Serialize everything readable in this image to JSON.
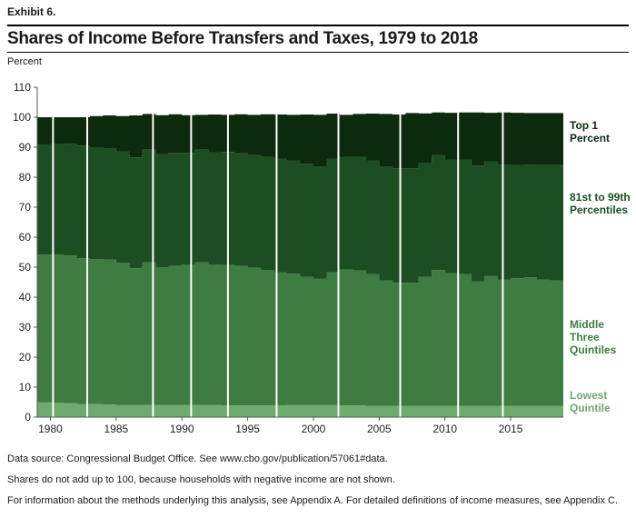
{
  "exhibit": "Exhibit 6.",
  "title": "Shares of Income Before Transfers and Taxes, 1979 to 2018",
  "unit_label": "Percent",
  "notes": {
    "source": "Data source: Congressional Budget Office. See www.cbo.gov/publication/57061#data.",
    "note1": "Shares do not add up to 100, because households with negative income are not shown.",
    "note2": "For information about the methods underlying this analysis, see Appendix A. For detailed definitions of income measures, see Appendix C."
  },
  "colors": {
    "lowest": "#6faa6f",
    "middle": "#3e7c42",
    "upper": "#1d4e22",
    "top1": "#0b2a0e",
    "separator": "#ffffff"
  },
  "chart_data": {
    "type": "area",
    "title": "Shares of Income Before Transfers and Taxes, 1979 to 2018",
    "ylabel": "Percent",
    "ylim": [
      0,
      110
    ],
    "yticks": [
      0,
      10,
      20,
      30,
      40,
      50,
      60,
      70,
      80,
      90,
      100,
      110
    ],
    "xticks": [
      1980,
      1985,
      1990,
      1995,
      2000,
      2005,
      2010,
      2015
    ],
    "recession_separators": [
      1980.2,
      1982.8,
      1987.8,
      1990.7,
      1993.5,
      1997.2,
      2001.9,
      2006.6,
      2011.0,
      2014.4
    ],
    "years": [
      1979,
      1980,
      1981,
      1982,
      1983,
      1984,
      1985,
      1986,
      1987,
      1988,
      1989,
      1990,
      1991,
      1992,
      1993,
      1994,
      1995,
      1996,
      1997,
      1998,
      1999,
      2000,
      2001,
      2002,
      2003,
      2004,
      2005,
      2006,
      2007,
      2008,
      2009,
      2010,
      2011,
      2012,
      2013,
      2014,
      2015,
      2016,
      2017,
      2018
    ],
    "series": [
      {
        "name": "Lowest Quintile",
        "values": [
          5.0,
          4.8,
          4.6,
          4.4,
          4.3,
          4.2,
          4.1,
          4.0,
          4.0,
          4.0,
          4.0,
          4.0,
          4.0,
          4.0,
          3.9,
          3.9,
          3.9,
          3.9,
          3.9,
          4.0,
          4.0,
          4.0,
          4.0,
          3.9,
          3.9,
          3.8,
          3.8,
          3.8,
          3.8,
          3.8,
          3.8,
          3.8,
          3.8,
          3.8,
          3.8,
          3.8,
          3.8,
          3.8,
          3.8,
          3.8
        ]
      },
      {
        "name": "Middle Three Quintiles",
        "values": [
          49.2,
          49.4,
          49.3,
          48.6,
          48.4,
          48.3,
          47.4,
          45.6,
          47.6,
          46.0,
          46.4,
          46.9,
          47.6,
          46.8,
          46.8,
          46.5,
          45.9,
          45.2,
          44.3,
          43.8,
          42.8,
          42.1,
          44.3,
          45.3,
          45.0,
          43.9,
          41.7,
          41.0,
          41.0,
          43.0,
          45.2,
          44.2,
          43.9,
          41.5,
          43.2,
          42.0,
          42.5,
          42.8,
          42.1,
          41.7
        ]
      },
      {
        "name": "81st to 99th Percentiles",
        "values": [
          36.6,
          37.0,
          37.2,
          37.5,
          37.3,
          37.0,
          37.0,
          37.0,
          37.6,
          37.6,
          37.7,
          37.2,
          37.8,
          37.4,
          37.7,
          37.6,
          37.6,
          37.7,
          37.9,
          37.8,
          37.7,
          37.3,
          37.9,
          37.5,
          37.8,
          37.9,
          37.9,
          38.2,
          38.2,
          37.8,
          38.3,
          37.9,
          38.2,
          38.6,
          38.3,
          38.2,
          37.8,
          37.6,
          38.1,
          38.5
        ]
      },
      {
        "name": "Top 1 Percent",
        "values": [
          9.2,
          8.8,
          8.9,
          9.5,
          10.4,
          11.1,
          11.9,
          14.0,
          11.9,
          13.1,
          12.9,
          12.6,
          11.4,
          12.7,
          12.4,
          13.0,
          13.4,
          14.2,
          14.8,
          15.2,
          16.4,
          17.4,
          15.0,
          14.1,
          14.4,
          15.6,
          17.7,
          17.9,
          18.4,
          16.7,
          14.3,
          15.6,
          15.7,
          17.7,
          16.2,
          17.6,
          17.4,
          17.2,
          17.4,
          17.4
        ]
      }
    ],
    "legend": [
      "Top 1 Percent",
      "81st to 99th Percentiles",
      "Middle Three Quintiles",
      "Lowest Quintile"
    ],
    "legend_placement": "right",
    "grid": false
  }
}
